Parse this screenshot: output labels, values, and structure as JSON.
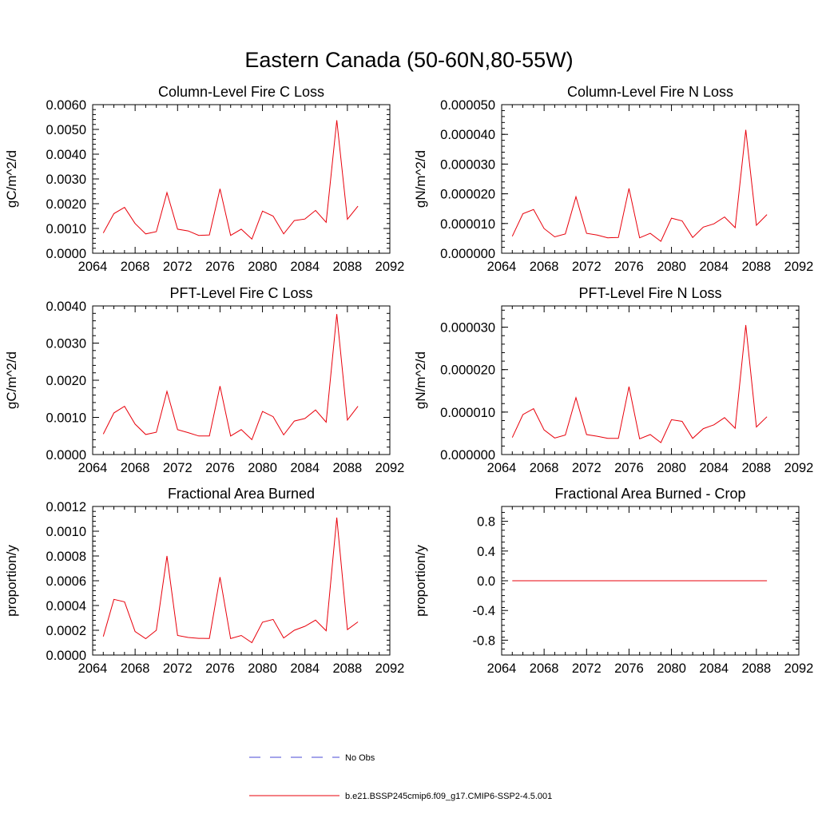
{
  "figure": {
    "title": "Eastern Canada (50-60N,80-55W)"
  },
  "legend": {
    "items": [
      {
        "label": "No Obs",
        "color": "#4a4ad6",
        "style": "dashed"
      },
      {
        "label": "b.e21.BSSP245cmip6.f09_g17.CMIP6-SSP2-4.5.001",
        "color": "#e8000b",
        "style": "solid"
      }
    ]
  },
  "chart_data": [
    {
      "type": "line",
      "title": "Column-Level Fire C Loss",
      "ylabel": "gC/m^2/d",
      "xlim": [
        2064,
        2092
      ],
      "ylim": [
        0,
        0.006
      ],
      "xticks": [
        "2064",
        "2068",
        "2072",
        "2076",
        "2080",
        "2084",
        "2088",
        "2092"
      ],
      "yticks": [
        {
          "v": 0.0,
          "t": "0.0000"
        },
        {
          "v": 0.001,
          "t": "0.0010"
        },
        {
          "v": 0.002,
          "t": "0.0020"
        },
        {
          "v": 0.003,
          "t": "0.0030"
        },
        {
          "v": 0.004,
          "t": "0.0040"
        },
        {
          "v": 0.005,
          "t": "0.0050"
        },
        {
          "v": 0.006,
          "t": "0.0060"
        }
      ],
      "x": [
        2065,
        2066,
        2067,
        2068,
        2069,
        2070,
        2071,
        2072,
        2073,
        2074,
        2075,
        2076,
        2077,
        2078,
        2079,
        2080,
        2081,
        2082,
        2083,
        2084,
        2085,
        2086,
        2087,
        2088,
        2089
      ],
      "series": [
        {
          "color": "#e8000b",
          "values": [
            0.00082,
            0.0016,
            0.00185,
            0.0012,
            0.00078,
            0.00087,
            0.00245,
            0.00097,
            0.0009,
            0.00072,
            0.00074,
            0.0026,
            0.00072,
            0.00097,
            0.00057,
            0.0017,
            0.0015,
            0.00078,
            0.00132,
            0.00138,
            0.00173,
            0.00125,
            0.00537,
            0.00137,
            0.0019
          ]
        }
      ]
    },
    {
      "type": "line",
      "title": "Column-Level Fire N Loss",
      "ylabel": "gN/m^2/d",
      "xlim": [
        2064,
        2092
      ],
      "ylim": [
        0,
        5e-05
      ],
      "xticks": [
        "2064",
        "2068",
        "2072",
        "2076",
        "2080",
        "2084",
        "2088",
        "2092"
      ],
      "yticks": [
        {
          "v": 0.0,
          "t": "0.000000"
        },
        {
          "v": 1e-05,
          "t": "0.000010"
        },
        {
          "v": 2e-05,
          "t": "0.000020"
        },
        {
          "v": 3e-05,
          "t": "0.000030"
        },
        {
          "v": 4e-05,
          "t": "0.000040"
        },
        {
          "v": 5e-05,
          "t": "0.000050"
        }
      ],
      "x": [
        2065,
        2066,
        2067,
        2068,
        2069,
        2070,
        2071,
        2072,
        2073,
        2074,
        2075,
        2076,
        2077,
        2078,
        2079,
        2080,
        2081,
        2082,
        2083,
        2084,
        2085,
        2086,
        2087,
        2088,
        2089
      ],
      "series": [
        {
          "color": "#e8000b",
          "values": [
            5.7e-06,
            1.33e-05,
            1.47e-05,
            8.3e-06,
            5.5e-06,
            6.5e-06,
            1.9e-05,
            6.7e-06,
            6.1e-06,
            5.2e-06,
            5.3e-06,
            2.18e-05,
            5.2e-06,
            6.7e-06,
            4e-06,
            1.18e-05,
            1.09e-05,
            5.3e-06,
            8.8e-06,
            9.9e-06,
            1.22e-05,
            8.6e-06,
            4.15e-05,
            9.4e-06,
            1.3e-05
          ]
        }
      ]
    },
    {
      "type": "line",
      "title": "PFT-Level Fire C Loss",
      "ylabel": "gC/m^2/d",
      "xlim": [
        2064,
        2092
      ],
      "ylim": [
        0,
        0.004
      ],
      "xticks": [
        "2064",
        "2068",
        "2072",
        "2076",
        "2080",
        "2084",
        "2088",
        "2092"
      ],
      "yticks": [
        {
          "v": 0.0,
          "t": "0.0000"
        },
        {
          "v": 0.001,
          "t": "0.0010"
        },
        {
          "v": 0.002,
          "t": "0.0020"
        },
        {
          "v": 0.003,
          "t": "0.0030"
        },
        {
          "v": 0.004,
          "t": "0.0040"
        }
      ],
      "x": [
        2065,
        2066,
        2067,
        2068,
        2069,
        2070,
        2071,
        2072,
        2073,
        2074,
        2075,
        2076,
        2077,
        2078,
        2079,
        2080,
        2081,
        2082,
        2083,
        2084,
        2085,
        2086,
        2087,
        2088,
        2089
      ],
      "series": [
        {
          "color": "#e8000b",
          "values": [
            0.00055,
            0.00112,
            0.0013,
            0.00082,
            0.00054,
            0.0006,
            0.0017,
            0.00067,
            0.00059,
            0.0005,
            0.0005,
            0.00184,
            0.0005,
            0.00067,
            0.0004,
            0.00116,
            0.00102,
            0.00053,
            0.0009,
            0.00097,
            0.0012,
            0.00087,
            0.00378,
            0.00093,
            0.0013
          ]
        }
      ]
    },
    {
      "type": "line",
      "title": "PFT-Level Fire N Loss",
      "ylabel": "gN/m^2/d",
      "xlim": [
        2064,
        2092
      ],
      "ylim": [
        0,
        3.5e-05
      ],
      "xticks": [
        "2064",
        "2068",
        "2072",
        "2076",
        "2080",
        "2084",
        "2088",
        "2092"
      ],
      "yticks": [
        {
          "v": 0.0,
          "t": "0.000000"
        },
        {
          "v": 1e-05,
          "t": "0.000010"
        },
        {
          "v": 2e-05,
          "t": "0.000020"
        },
        {
          "v": 3e-05,
          "t": "0.000030"
        }
      ],
      "x": [
        2065,
        2066,
        2067,
        2068,
        2069,
        2070,
        2071,
        2072,
        2073,
        2074,
        2075,
        2076,
        2077,
        2078,
        2079,
        2080,
        2081,
        2082,
        2083,
        2084,
        2085,
        2086,
        2087,
        2088,
        2089
      ],
      "series": [
        {
          "color": "#e8000b",
          "values": [
            4e-06,
            9.4e-06,
            1.08e-05,
            5.8e-06,
            3.9e-06,
            4.6e-06,
            1.34e-05,
            4.7e-06,
            4.3e-06,
            3.8e-06,
            3.8e-06,
            1.6e-05,
            3.7e-06,
            4.7e-06,
            2.8e-06,
            8.2e-06,
            7.8e-06,
            3.8e-06,
            6.1e-06,
            7e-06,
            8.7e-06,
            6.2e-06,
            3.05e-05,
            6.5e-06,
            8.9e-06
          ]
        }
      ]
    },
    {
      "type": "line",
      "title": "Fractional Area Burned",
      "ylabel": "proportion/y",
      "xlim": [
        2064,
        2092
      ],
      "ylim": [
        0,
        0.0012
      ],
      "xticks": [
        "2064",
        "2068",
        "2072",
        "2076",
        "2080",
        "2084",
        "2088",
        "2092"
      ],
      "yticks": [
        {
          "v": 0.0,
          "t": "0.0000"
        },
        {
          "v": 0.0002,
          "t": "0.0002"
        },
        {
          "v": 0.0004,
          "t": "0.0004"
        },
        {
          "v": 0.0006,
          "t": "0.0006"
        },
        {
          "v": 0.0008,
          "t": "0.0008"
        },
        {
          "v": 0.001,
          "t": "0.0010"
        },
        {
          "v": 0.0012,
          "t": "0.0012"
        }
      ],
      "x": [
        2065,
        2066,
        2067,
        2068,
        2069,
        2070,
        2071,
        2072,
        2073,
        2074,
        2075,
        2076,
        2077,
        2078,
        2079,
        2080,
        2081,
        2082,
        2083,
        2084,
        2085,
        2086,
        2087,
        2088,
        2089
      ],
      "series": [
        {
          "color": "#e8000b",
          "values": [
            0.00015,
            0.00045,
            0.00043,
            0.00019,
            0.000132,
            0.0002,
            0.0008,
            0.000158,
            0.000142,
            0.000135,
            0.000134,
            0.00063,
            0.000133,
            0.000158,
            0.0001,
            0.000265,
            0.000288,
            0.000138,
            0.0002,
            0.000232,
            0.000282,
            0.000196,
            0.00111,
            0.000205,
            0.000268
          ]
        }
      ]
    },
    {
      "type": "line",
      "title": "Fractional Area Burned - Crop",
      "ylabel": "proportion/y",
      "xlim": [
        2064,
        2092
      ],
      "ylim": [
        -1,
        1
      ],
      "xticks": [
        "2064",
        "2068",
        "2072",
        "2076",
        "2080",
        "2084",
        "2088",
        "2092"
      ],
      "yticks": [
        {
          "v": -0.8,
          "t": "-0.8"
        },
        {
          "v": -0.4,
          "t": "-0.4"
        },
        {
          "v": 0.0,
          "t": "0.0"
        },
        {
          "v": 0.4,
          "t": "0.4"
        },
        {
          "v": 0.8,
          "t": "0.8"
        }
      ],
      "x": [
        2065,
        2066,
        2067,
        2068,
        2069,
        2070,
        2071,
        2072,
        2073,
        2074,
        2075,
        2076,
        2077,
        2078,
        2079,
        2080,
        2081,
        2082,
        2083,
        2084,
        2085,
        2086,
        2087,
        2088,
        2089
      ],
      "series": [
        {
          "color": "#e8000b",
          "values": [
            0,
            0,
            0,
            0,
            0,
            0,
            0,
            0,
            0,
            0,
            0,
            0,
            0,
            0,
            0,
            0,
            0,
            0,
            0,
            0,
            0,
            0,
            0,
            0,
            0
          ]
        }
      ]
    }
  ]
}
